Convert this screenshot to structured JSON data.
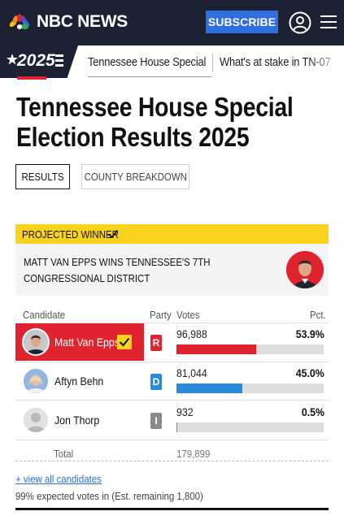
{
  "header": {
    "brand": "NBC NEWS",
    "subscribe_label": "SUBSCRIBE",
    "icons": {
      "user": "user-account-icon",
      "menu": "hamburger-menu-icon",
      "logo": "nbc-peacock-icon"
    },
    "colors": {
      "bar": "#1c2233",
      "subscribe": "#2f6fe0"
    }
  },
  "subnav": {
    "badge": "2025",
    "tabs": [
      {
        "label": "Tennessee House Special",
        "active": true
      },
      {
        "label": "What's at stake in TN-07",
        "active": false
      }
    ]
  },
  "page": {
    "title": "Tennessee House Special Election Results 2025",
    "view_tabs": [
      {
        "label": "RESULTS",
        "selected": true
      },
      {
        "label": "COUNTY BREAKDOWN",
        "selected": false
      }
    ]
  },
  "projected": {
    "label": "PROJECTED WINNER",
    "text": "MATT VAN EPPS WINS TENNESSEE'S 7TH CONGRESSIONAL DISTRICT",
    "color": "#f8d21c"
  },
  "table": {
    "headers": {
      "candidate": "Candidate",
      "party": "Party",
      "votes": "Votes",
      "pct": "Pct."
    },
    "rows": [
      {
        "name": "Matt Van Epps",
        "party": "R",
        "votes": "96,988",
        "pct": "53.9%",
        "share": 0.539,
        "winner": true,
        "color": "#e0242f"
      },
      {
        "name": "Aftyn Behn",
        "party": "D",
        "votes": "81,044",
        "pct": "45.0%",
        "share": 0.45,
        "winner": false,
        "color": "#2b8ad9"
      },
      {
        "name": "Jon Thorp",
        "party": "I",
        "votes": "932",
        "pct": "0.5%",
        "share": 0.005,
        "winner": false,
        "color": "#8a8a8a"
      }
    ],
    "total_label": "Total",
    "total_votes": "179,899"
  },
  "footer": {
    "view_all": "+ view all candidates",
    "expected": "99% expected votes in (Est. remaining 1,800)"
  }
}
